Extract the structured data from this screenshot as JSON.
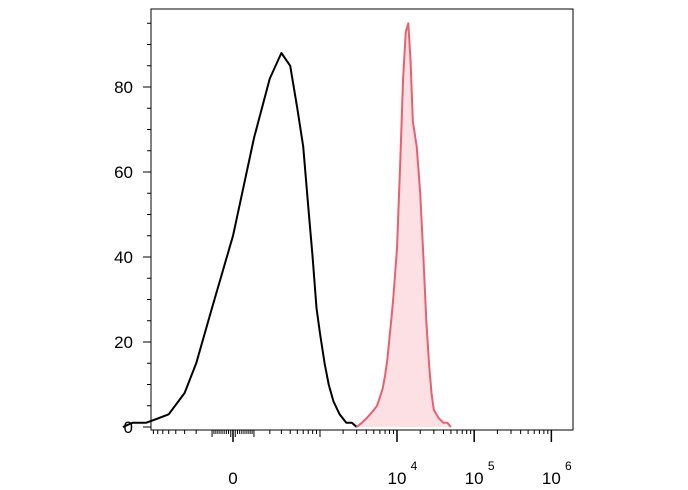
{
  "chart_data": {
    "type": "area",
    "title": "",
    "xlabel": "",
    "ylabel": "",
    "x_scale": "biexponential",
    "ylim": [
      0,
      96
    ],
    "grid": false,
    "legend": "none",
    "y_ticks": [
      {
        "value": 0,
        "label": "0"
      },
      {
        "value": 20,
        "label": "20"
      },
      {
        "value": 40,
        "label": "40"
      },
      {
        "value": 60,
        "label": "60"
      },
      {
        "value": 80,
        "label": "80"
      }
    ],
    "x_ticks": [
      {
        "value": 0,
        "label": "0",
        "exp": ""
      },
      {
        "value": 10000,
        "label": "10",
        "exp": "4"
      },
      {
        "value": 100000,
        "label": "10",
        "exp": "5"
      },
      {
        "value": 1000000,
        "label": "10",
        "exp": "6"
      }
    ],
    "series": [
      {
        "color": "#000000",
        "fill": "none",
        "x": [
          -2000,
          -1500,
          -1000,
          -700,
          -500,
          -300,
          -200,
          -100,
          0,
          100,
          200,
          300,
          400,
          500,
          600,
          700,
          800,
          900,
          1000,
          1150,
          1300,
          1500,
          1800,
          2200,
          2600,
          3000
        ],
        "y": [
          0,
          1,
          1,
          2,
          3,
          8,
          15,
          28,
          45,
          68,
          82,
          88,
          85,
          75,
          66,
          52,
          40,
          28,
          22,
          15,
          10,
          6,
          3,
          1,
          1,
          0
        ]
      },
      {
        "color": "#e8606f",
        "fill": "#fde0e3",
        "x": [
          3000,
          3500,
          4000,
          4500,
          5000,
          5500,
          6000,
          6500,
          7000,
          7500,
          8000,
          8500,
          9000,
          10000,
          11000,
          12000,
          13000,
          14000,
          15000,
          16000,
          18000,
          20000,
          22000,
          24000,
          26000,
          28000,
          30000,
          35000,
          40000,
          45000,
          50000
        ],
        "y": [
          0,
          1,
          2,
          3,
          4,
          5,
          7,
          9,
          12,
          16,
          21,
          26,
          31,
          42,
          62,
          82,
          93,
          95,
          86,
          72,
          66,
          55,
          40,
          25,
          15,
          8,
          4,
          2,
          1,
          1,
          0
        ]
      }
    ]
  }
}
